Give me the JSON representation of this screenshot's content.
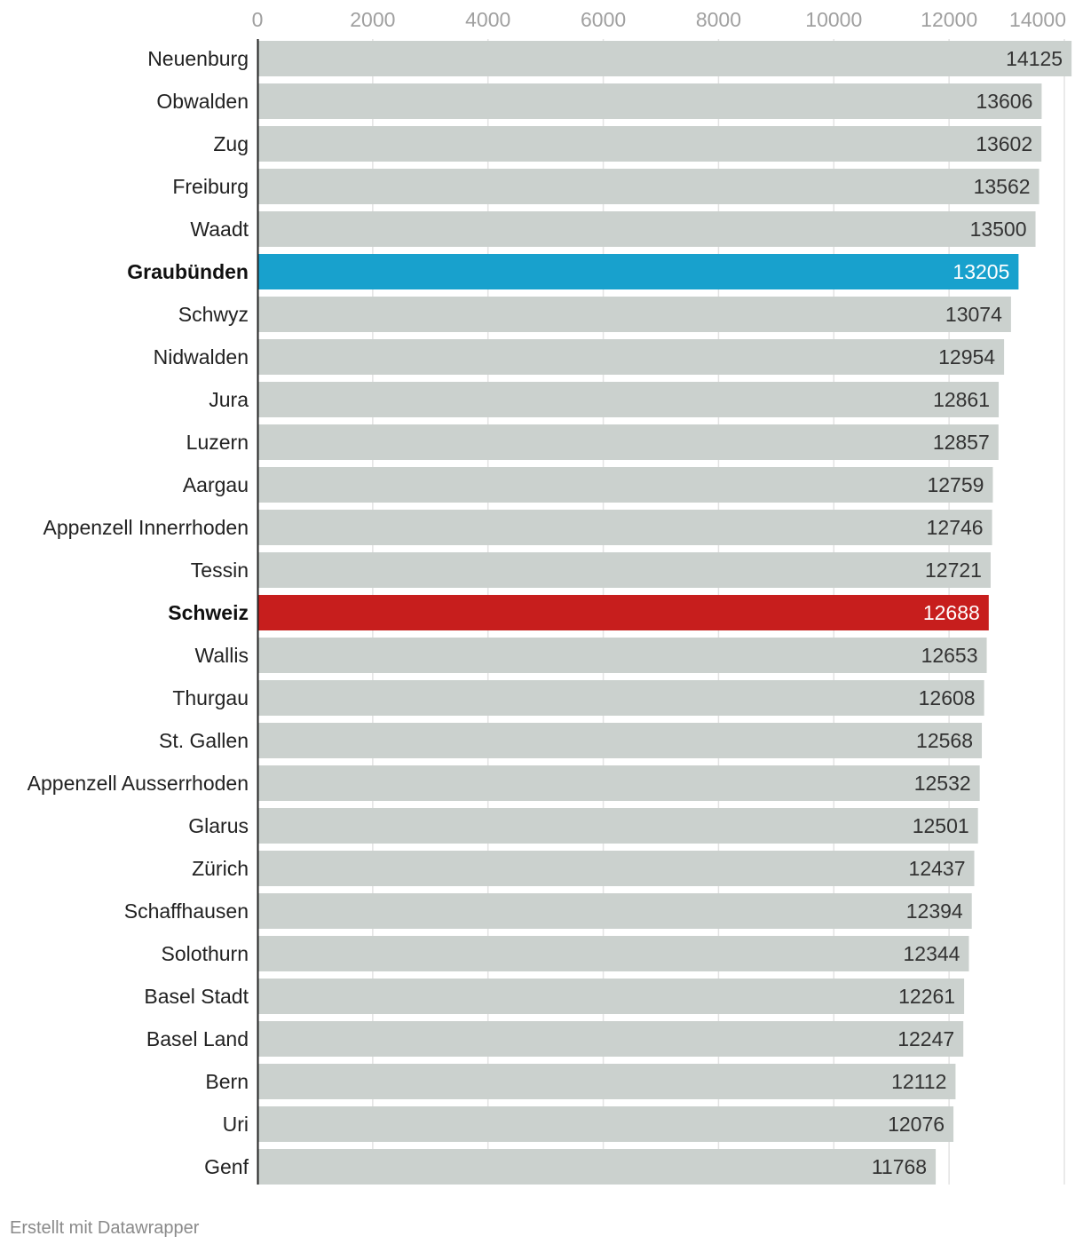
{
  "chart_data": {
    "type": "bar",
    "orientation": "horizontal",
    "title": "",
    "xlabel": "",
    "ylabel": "",
    "xlim": [
      0,
      14000
    ],
    "ticks": [
      0,
      2000,
      4000,
      6000,
      8000,
      10000,
      12000,
      14000
    ],
    "grid": true,
    "categories": [
      "Neuenburg",
      "Obwalden",
      "Zug",
      "Freiburg",
      "Waadt",
      "Graubünden",
      "Schwyz",
      "Nidwalden",
      "Jura",
      "Luzern",
      "Aargau",
      "Appenzell Innerrhoden",
      "Tessin",
      "Schweiz",
      "Wallis",
      "Thurgau",
      "St. Gallen",
      "Appenzell Ausserrhoden",
      "Glarus",
      "Zürich",
      "Schaffhausen",
      "Solothurn",
      "Basel Stadt",
      "Basel Land",
      "Bern",
      "Uri",
      "Genf"
    ],
    "values": [
      14125,
      13606,
      13602,
      13562,
      13500,
      13205,
      13074,
      12954,
      12861,
      12857,
      12759,
      12746,
      12721,
      12688,
      12653,
      12608,
      12568,
      12532,
      12501,
      12437,
      12394,
      12344,
      12261,
      12247,
      12112,
      12076,
      11768
    ],
    "highlights": {
      "Graubünden": "#18a1cd",
      "Schweiz": "#c71e1d"
    },
    "default_color": "#cbd1ce"
  },
  "footer": {
    "credit": "Erstellt mit Datawrapper"
  }
}
